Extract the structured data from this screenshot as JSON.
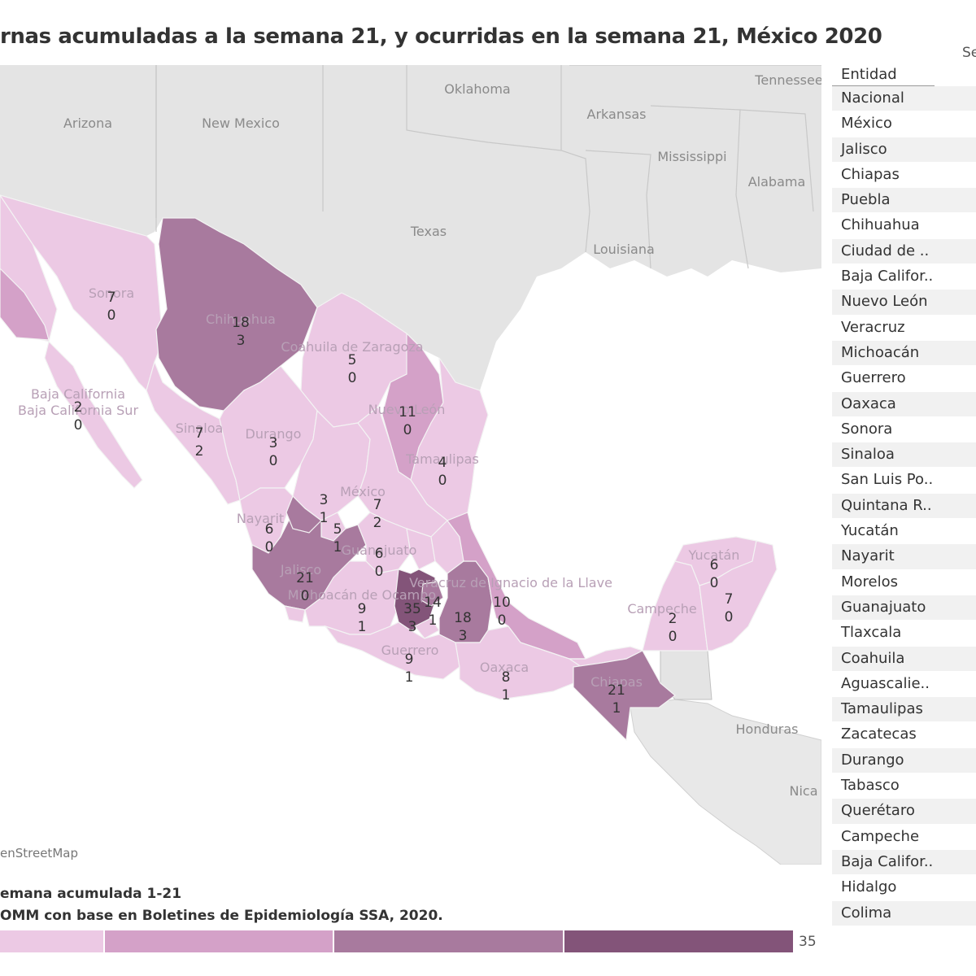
{
  "title": "rnas acumuladas a la semana 21, y ocurridas en la semana 21, México 2020",
  "map": {
    "attribution": "enStreetMap",
    "country_label": "México",
    "us_labels": [
      "Oklahoma",
      "Tennessee",
      "Arizona",
      "New Mexico",
      "Arkansas",
      "Mississippi",
      "Alabama",
      "Texas",
      "Louisiana"
    ],
    "central_america_labels": [
      "Honduras",
      "Nica"
    ],
    "state_labels": [
      "Sonora",
      "Chihuahua",
      "Coahuila de Zaragoza",
      "Nuevo León",
      "Baja California",
      "Baja California Sur",
      "Sinaloa",
      "Durango",
      "Tamaulipas",
      "Nayarit",
      "Jalisco",
      "Guanajuato",
      "Michoacán de Ocampo",
      "Guerrero",
      "Oaxaca",
      "Chiapas",
      "Veracruz de Ignacio de la Llave",
      "Campeche",
      "Yucatán"
    ],
    "counts": [
      {
        "state": "Sonora",
        "acum": "7",
        "sem": "0"
      },
      {
        "state": "Chihuahua",
        "acum": "18",
        "sem": "3"
      },
      {
        "state": "Coahuila",
        "acum": "5",
        "sem": "0"
      },
      {
        "state": "Nuevo León",
        "acum": "11",
        "sem": "0"
      },
      {
        "state": "Baja California Sur",
        "acum": "2",
        "sem": "0"
      },
      {
        "state": "Sinaloa",
        "acum": "7",
        "sem": "2"
      },
      {
        "state": "Durango",
        "acum": "3",
        "sem": "0"
      },
      {
        "state": "Tamaulipas",
        "acum": "4",
        "sem": "0"
      },
      {
        "state": "Zacatecas",
        "acum": "3",
        "sem": "1"
      },
      {
        "state": "San Luis Potosí",
        "acum": "7",
        "sem": "2"
      },
      {
        "state": "Aguascalientes",
        "acum": "5",
        "sem": "1"
      },
      {
        "state": "Nayarit",
        "acum": "6",
        "sem": "0"
      },
      {
        "state": "Guanajuato",
        "acum": "6",
        "sem": "0"
      },
      {
        "state": "Jalisco",
        "acum": "21",
        "sem": "0"
      },
      {
        "state": "Michoacán",
        "acum": "9",
        "sem": "1"
      },
      {
        "state": "México",
        "acum": "35",
        "sem": "3"
      },
      {
        "state": "Ciudad de México",
        "acum": "14",
        "sem": "1"
      },
      {
        "state": "Puebla",
        "acum": "18",
        "sem": "3"
      },
      {
        "state": "Veracruz",
        "acum": "10",
        "sem": "0"
      },
      {
        "state": "Guerrero",
        "acum": "9",
        "sem": "1"
      },
      {
        "state": "Oaxaca",
        "acum": "8",
        "sem": "1"
      },
      {
        "state": "Chiapas",
        "acum": "21",
        "sem": "1"
      },
      {
        "state": "Campeche",
        "acum": "2",
        "sem": "0"
      },
      {
        "state": "Yucatán",
        "acum": "6",
        "sem": "0"
      },
      {
        "state": "Quintana Roo",
        "acum": "7",
        "sem": "0"
      }
    ]
  },
  "legend": {
    "title": "emana acumulada 1-21",
    "source": "OMM con base en Boletines de Epidemiología SSA, 2020.",
    "max_label": "35",
    "colors": [
      "#ecc9e4",
      "#d4a1c8",
      "#a87a9e",
      "#835479"
    ]
  },
  "table": {
    "header_entidad": "Entidad",
    "header_semana": "Se",
    "rows": [
      "Nacional",
      "México",
      "Jalisco",
      "Chiapas",
      "Puebla",
      "Chihuahua",
      "Ciudad de ..",
      "Baja Califor..",
      "Nuevo León",
      "Veracruz",
      "Michoacán",
      "Guerrero",
      "Oaxaca",
      "Sonora",
      "Sinaloa",
      "San Luis Po..",
      "Quintana R..",
      "Yucatán",
      "Nayarit",
      "Morelos",
      "Guanajuato",
      "Tlaxcala",
      "Coahuila",
      "Aguascalie..",
      "Tamaulipas",
      "Zacatecas",
      "Durango",
      "Tabasco",
      "Querétaro",
      "Campeche",
      "Baja Califor..",
      "Hidalgo",
      "Colima"
    ]
  }
}
